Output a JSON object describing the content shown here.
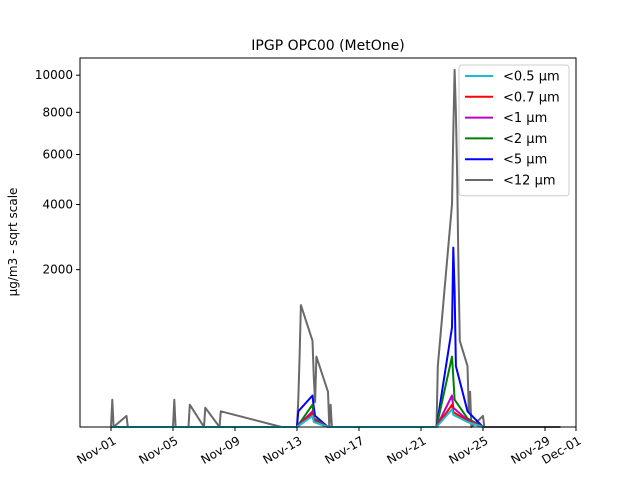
{
  "chart_data": {
    "type": "line",
    "title": "IPGP OPC00 (MetOne)",
    "ylabel": "µg/m3 - sqrt scale",
    "xlabel": "",
    "y_scale": "sqrt",
    "ylim": [
      0,
      11000
    ],
    "xlim": [
      "2023-10-30",
      "2023-12-01"
    ],
    "x_ticks": [
      "Nov-01",
      "Nov-05",
      "Nov-09",
      "Nov-13",
      "Nov-17",
      "Nov-21",
      "Nov-25",
      "Nov-29",
      "Dec-01"
    ],
    "x_tick_dates": [
      "2023-11-01",
      "2023-11-05",
      "2023-11-09",
      "2023-11-13",
      "2023-11-17",
      "2023-11-21",
      "2023-11-25",
      "2023-11-29",
      "2023-12-01"
    ],
    "y_ticks": [
      2000,
      4000,
      6000,
      8000,
      10000
    ],
    "legend_position": "top-right",
    "series": [
      {
        "name": "<0.5 µm",
        "color": "#17becf",
        "x": [
          "2023-11-01",
          "2023-11-13",
          "2023-11-14",
          "2023-11-14",
          "2023-11-15",
          "2023-11-22",
          "2023-11-23",
          "2023-11-23",
          "2023-11-24",
          "2023-11-25"
        ],
        "y": [
          0,
          0,
          10,
          2,
          0,
          0,
          25,
          12,
          2,
          0
        ]
      },
      {
        "name": "<0.7 µm",
        "color": "#ff0000",
        "x": [
          "2023-11-01",
          "2023-11-13",
          "2023-11-14",
          "2023-11-14",
          "2023-11-15",
          "2023-11-22",
          "2023-11-23",
          "2023-11-23",
          "2023-11-24",
          "2023-11-25"
        ],
        "y": [
          0,
          0,
          15,
          3,
          0,
          0,
          40,
          18,
          3,
          0
        ]
      },
      {
        "name": "<1 µm",
        "color": "#bf00bf",
        "x": [
          "2023-11-01",
          "2023-11-13",
          "2023-11-14",
          "2023-11-14",
          "2023-11-15",
          "2023-11-22",
          "2023-11-23",
          "2023-11-23",
          "2023-11-24",
          "2023-11-25"
        ],
        "y": [
          0,
          0,
          20,
          4,
          0,
          0,
          80,
          30,
          4,
          0
        ]
      },
      {
        "name": "<2 µm",
        "color": "#008000",
        "x": [
          "2023-11-01",
          "2023-11-13",
          "2023-11-14",
          "2023-11-14",
          "2023-11-15",
          "2023-11-22",
          "2023-11-23",
          "2023-11-23",
          "2023-11-23",
          "2023-11-24",
          "2023-11-25"
        ],
        "y": [
          0,
          0,
          40,
          6,
          0,
          0,
          400,
          200,
          60,
          6,
          0
        ]
      },
      {
        "name": "<5 µm",
        "color": "#0000ff",
        "x": [
          "2023-11-01",
          "2023-11-13",
          "2023-11-13",
          "2023-11-14",
          "2023-11-14",
          "2023-11-14",
          "2023-11-15",
          "2023-11-22",
          "2023-11-23",
          "2023-11-23",
          "2023-11-23",
          "2023-11-23",
          "2023-11-24",
          "2023-11-25"
        ],
        "y": [
          0,
          0,
          20,
          80,
          30,
          10,
          0,
          0,
          800,
          2600,
          1500,
          300,
          20,
          0
        ]
      },
      {
        "name": "<12 µm",
        "color": "#696969",
        "x": [
          "2023-11-01",
          "2023-11-01",
          "2023-11-01",
          "2023-11-02",
          "2023-11-02",
          "2023-11-05",
          "2023-11-05",
          "2023-11-05",
          "2023-11-06",
          "2023-11-06",
          "2023-11-07",
          "2023-11-07",
          "2023-11-08",
          "2023-11-08",
          "2023-11-12",
          "2023-11-13",
          "2023-11-13",
          "2023-11-13",
          "2023-11-13",
          "2023-11-14",
          "2023-11-14",
          "2023-11-14",
          "2023-11-14",
          "2023-11-15",
          "2023-11-15",
          "2023-11-15",
          "2023-11-15",
          "2023-11-19",
          "2023-11-21",
          "2023-11-22",
          "2023-11-22",
          "2023-11-23",
          "2023-11-23",
          "2023-11-23",
          "2023-11-23",
          "2023-11-23",
          "2023-11-23",
          "2023-11-23",
          "2023-11-24",
          "2023-11-24",
          "2023-11-24",
          "2023-11-24",
          "2023-11-25",
          "2023-11-25",
          "2023-11-30"
        ],
        "y": [
          0,
          60,
          0,
          10,
          0,
          0,
          60,
          0,
          0,
          40,
          0,
          30,
          0,
          20,
          0,
          0,
          60,
          400,
          1200,
          600,
          200,
          50,
          400,
          100,
          0,
          40,
          0,
          0,
          0,
          0,
          300,
          4000,
          7000,
          10300,
          8000,
          5000,
          2000,
          600,
          300,
          20,
          100,
          0,
          10,
          0,
          0
        ]
      }
    ]
  }
}
